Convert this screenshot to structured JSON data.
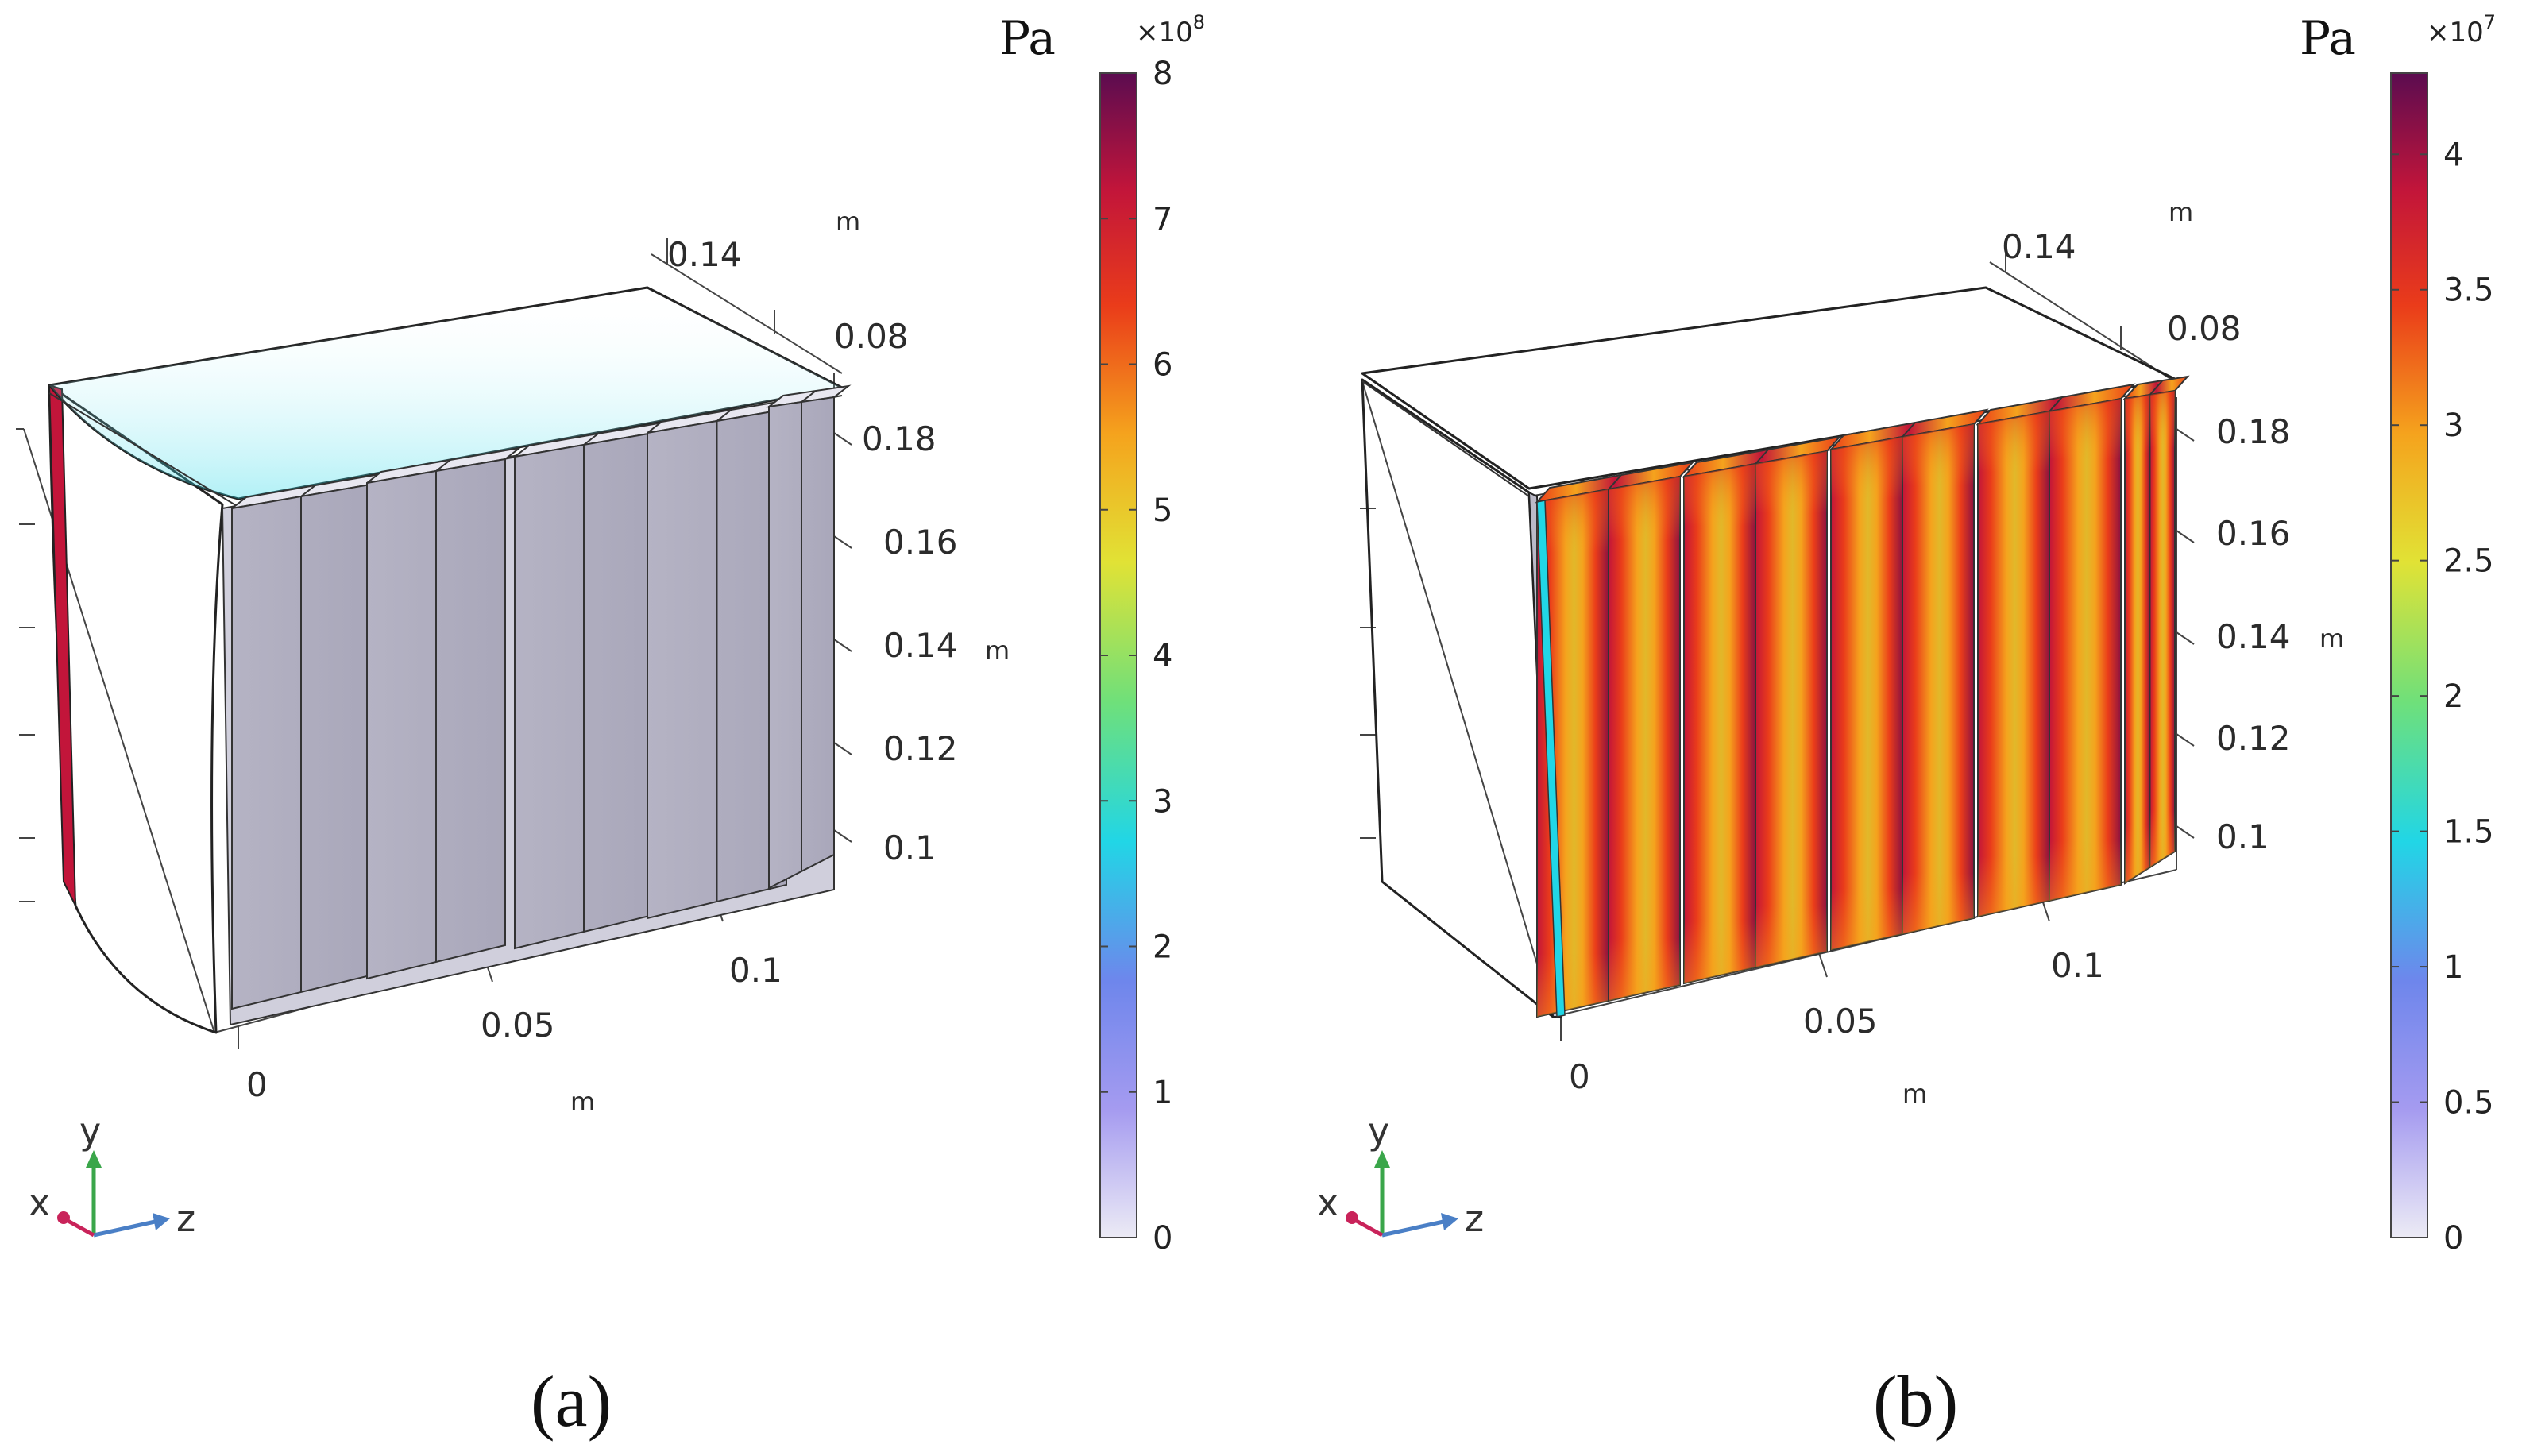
{
  "panels": [
    {
      "id": "a",
      "caption": "(a)",
      "colorbar": {
        "unit": "Pa",
        "exponent_base": "×10",
        "exponent_power": "8",
        "min": 0,
        "max": 8,
        "tick_values": [
          0,
          1,
          2,
          3,
          4,
          5,
          6,
          7,
          8
        ],
        "tick_labels": [
          "0",
          "1",
          "2",
          "3",
          "4",
          "5",
          "6",
          "7",
          "8"
        ],
        "colormap": [
          "#ecebf5",
          "#a59bf0",
          "#6e86ec",
          "#21d6e6",
          "#6fe07a",
          "#e1e235",
          "#f5a31d",
          "#ea3c1a",
          "#c2153a",
          "#5b0c50"
        ]
      },
      "axes": {
        "z_ticks": [
          "0",
          "0.05",
          "0.1"
        ],
        "z_unit": "m",
        "y_ticks": [
          "0.18",
          "0.16",
          "0.14",
          "0.12",
          "0.1"
        ],
        "y_unit": "m",
        "x_ticks": [
          "0.14",
          "0.08"
        ],
        "x_unit": "m"
      }
    },
    {
      "id": "b",
      "caption": "(b)",
      "colorbar": {
        "unit": "Pa",
        "exponent_base": "×10",
        "exponent_power": "7",
        "min": 0,
        "max": 4.3,
        "tick_values": [
          0,
          0.5,
          1,
          1.5,
          2,
          2.5,
          3,
          3.5,
          4
        ],
        "tick_labels": [
          "0",
          "0.5",
          "1",
          "1.5",
          "2",
          "2.5",
          "3",
          "3.5",
          "4"
        ],
        "colormap": [
          "#ecebf5",
          "#a59bf0",
          "#6e86ec",
          "#21d6e6",
          "#6fe07a",
          "#e1e235",
          "#f5a31d",
          "#ea3c1a",
          "#c2153a",
          "#5b0c50"
        ]
      },
      "axes": {
        "z_ticks": [
          "0",
          "0.05",
          "0.1"
        ],
        "z_unit": "m",
        "y_ticks": [
          "0.18",
          "0.16",
          "0.14",
          "0.12",
          "0.1"
        ],
        "y_unit": "m",
        "x_ticks": [
          "0.14",
          "0.08"
        ],
        "x_unit": "m"
      }
    }
  ],
  "triad": {
    "x": "x",
    "y": "y",
    "z": "z"
  }
}
